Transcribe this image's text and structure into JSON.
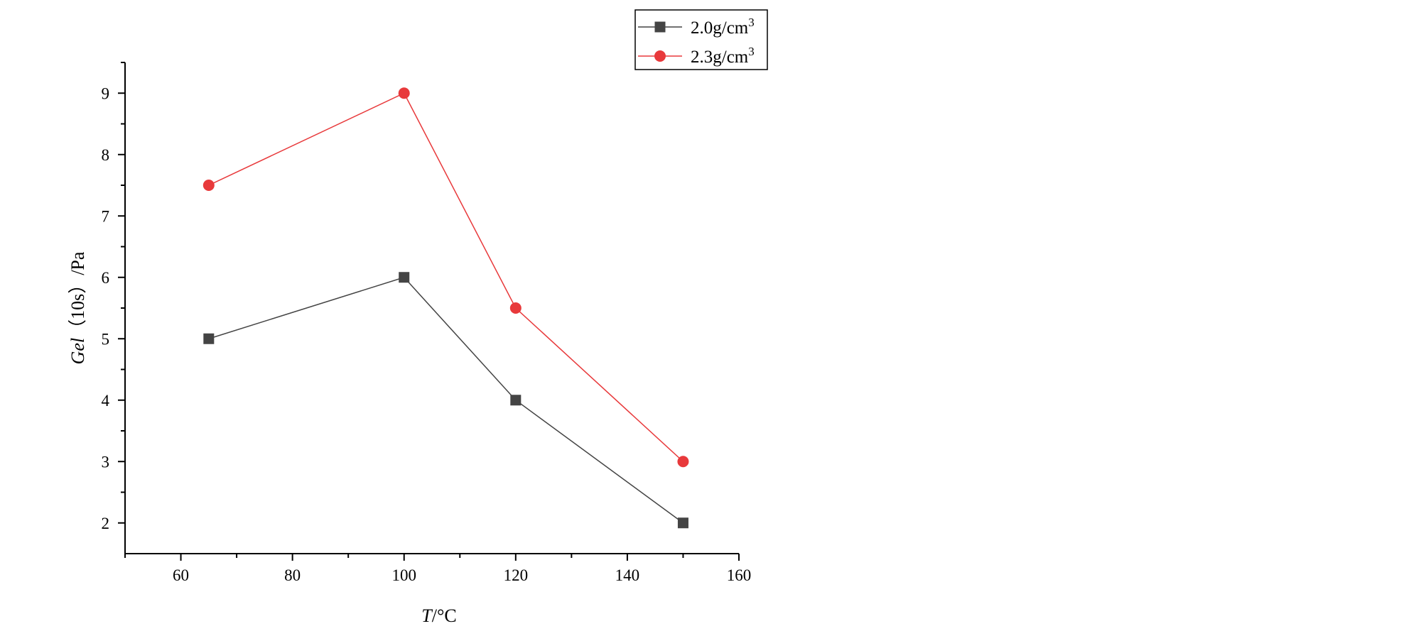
{
  "chart_data": {
    "type": "line",
    "xlabel": {
      "var": "T",
      "unit": "/°C"
    },
    "ylabel": {
      "var": "Gel",
      "rest": "（10s）/Pa"
    },
    "xlim": [
      50,
      160
    ],
    "ylim": [
      1.5,
      9.5
    ],
    "x_ticks": [
      60,
      80,
      100,
      120,
      140,
      160
    ],
    "y_ticks": [
      2,
      3,
      4,
      5,
      6,
      7,
      8,
      9
    ],
    "grid": false,
    "legend_position": "top-right",
    "series": [
      {
        "name": "2.0g/cm",
        "name_sup": "3",
        "color": "#444444",
        "marker": "square",
        "x": [
          65,
          100,
          120,
          150
        ],
        "y": [
          5,
          6,
          4,
          2
        ]
      },
      {
        "name": "2.3g/cm",
        "name_sup": "3",
        "color": "#e8393b",
        "marker": "circle",
        "x": [
          65,
          100,
          120,
          150
        ],
        "y": [
          7.5,
          9,
          5.5,
          3
        ]
      }
    ]
  }
}
